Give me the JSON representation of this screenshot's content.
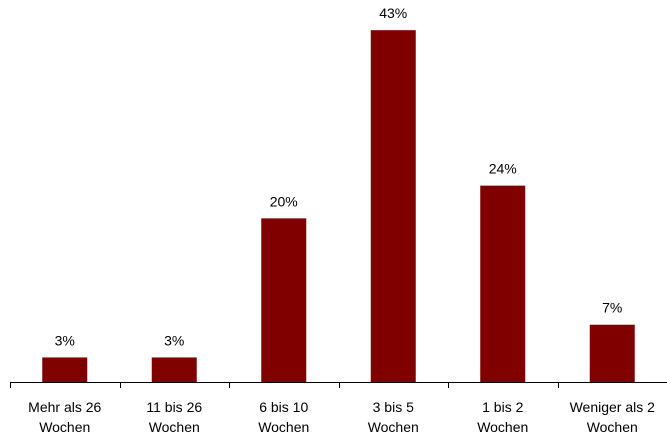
{
  "colors": {
    "bar": "#800000",
    "axis": "#000000"
  },
  "chart_data": {
    "type": "bar",
    "title": "",
    "xlabel": "",
    "ylabel": "",
    "ylim": [
      0,
      44
    ],
    "grid": false,
    "categories": [
      [
        "Mehr als 26",
        "Wochen"
      ],
      [
        "11 bis 26",
        "Wochen"
      ],
      [
        "6 bis 10",
        "Wochen"
      ],
      [
        "3 bis 5",
        "Wochen"
      ],
      [
        "1 bis 2",
        "Wochen"
      ],
      [
        "Weniger als 2",
        "Wochen"
      ]
    ],
    "values": [
      3,
      3,
      20,
      43,
      24,
      7
    ],
    "value_labels": [
      "3%",
      "3%",
      "20%",
      "43%",
      "24%",
      "7%"
    ]
  }
}
